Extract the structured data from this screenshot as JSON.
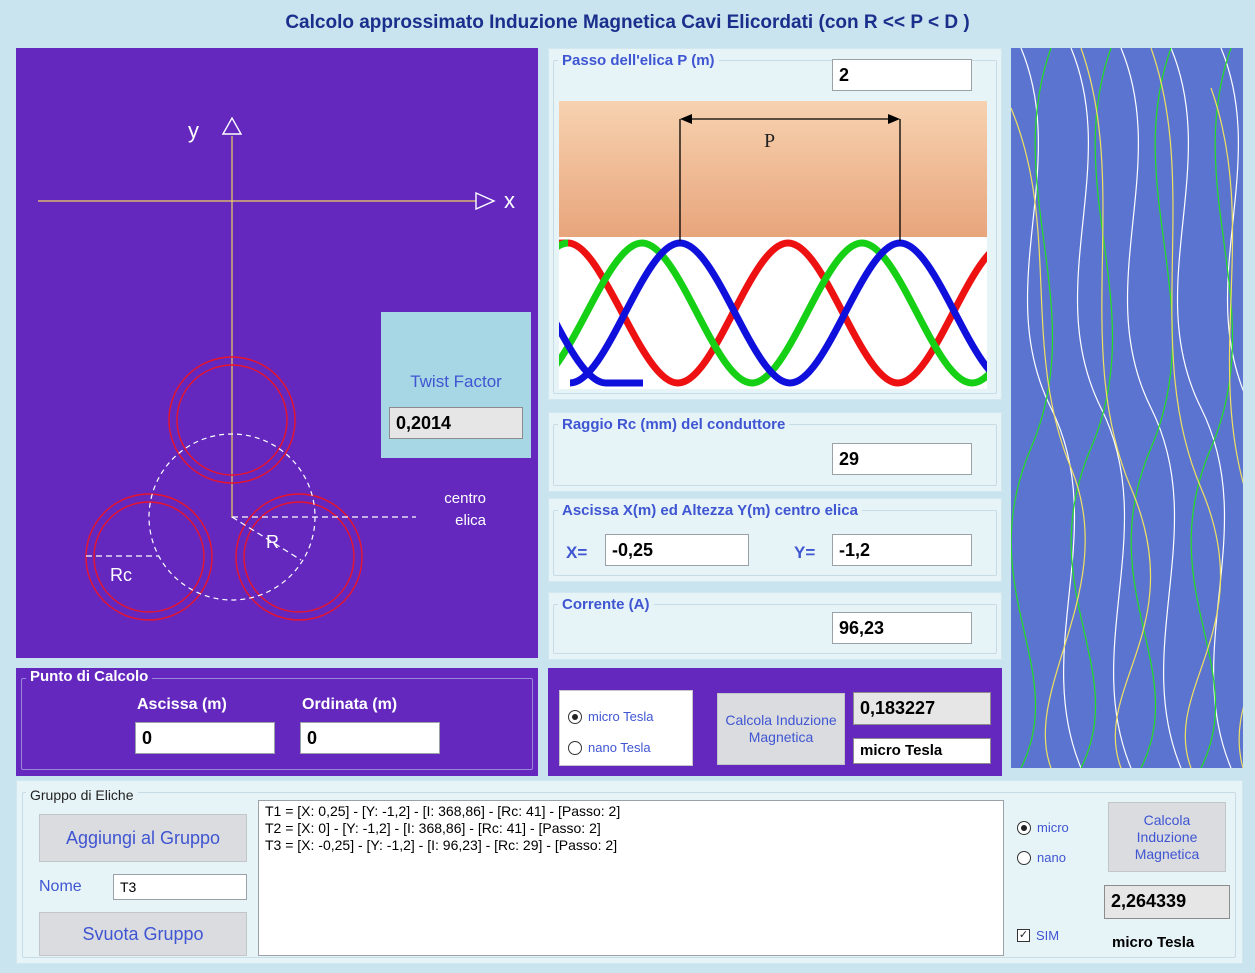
{
  "title": "Calcolo approssimato Induzione Magnetica Cavi Elicordati (con R << P < D )",
  "diagram": {
    "y_axis": "y",
    "x_axis": "x",
    "r_label": "R",
    "rc_label": "Rc",
    "center_label": "centro\nelica"
  },
  "twist": {
    "label": "Twist Factor",
    "value": "0,2014"
  },
  "passo": {
    "label": "Passo dell'elica P (m)",
    "value": "2",
    "p_label": "P"
  },
  "raggio": {
    "label": "Raggio Rc (mm) del conduttore",
    "value": "29"
  },
  "ascissa": {
    "label": "Ascissa X(m) ed Altezza Y(m) centro elica",
    "x_label": "X=",
    "x_value": "-0,25",
    "y_label": "Y=",
    "y_value": "-1,2"
  },
  "corrente": {
    "label": "Corrente (A)",
    "value": "96,23"
  },
  "punto": {
    "label": "Punto di Calcolo",
    "ascissa_label": "Ascissa (m)",
    "ascissa_value": "0",
    "ordinata_label": "Ordinata (m)",
    "ordinata_value": "0"
  },
  "calc": {
    "micro_label": "micro Tesla",
    "nano_label": "nano Tesla",
    "selected": "micro",
    "button_label": "Calcola Induzione Magnetica",
    "result": "0,183227",
    "unit": "micro Tesla"
  },
  "gruppo": {
    "label": "Gruppo di Eliche",
    "add_button": "Aggiungi al Gruppo",
    "nome_label": "Nome",
    "nome_value": "T3",
    "clear_button": "Svuota Gruppo",
    "items": [
      "T1 = [X: 0,25] - [Y: -1,2] - [I: 368,86] - [Rc: 41] - [Passo: 2]",
      "T2 = [X: 0] - [Y: -1,2] - [I: 368,86] - [Rc: 41] - [Passo: 2]",
      "T3 = [X: -0,25] - [Y: -1,2] - [I: 96,23] - [Rc: 29] - [Passo: 2]"
    ],
    "micro_label": "micro",
    "nano_label": "nano",
    "selected": "micro",
    "calc_button": "Calcola Induzione Magnetica",
    "result": "2,264339",
    "sim_label": "SIM",
    "sim_checked": true,
    "unit": "micro Tesla"
  },
  "colors": {
    "purple": "#6428be",
    "panel_bg": "#e6f4f8",
    "label_blue": "#3f55d2",
    "title_blue": "#1a2f8c",
    "helix_bg": "#5b74d0"
  }
}
